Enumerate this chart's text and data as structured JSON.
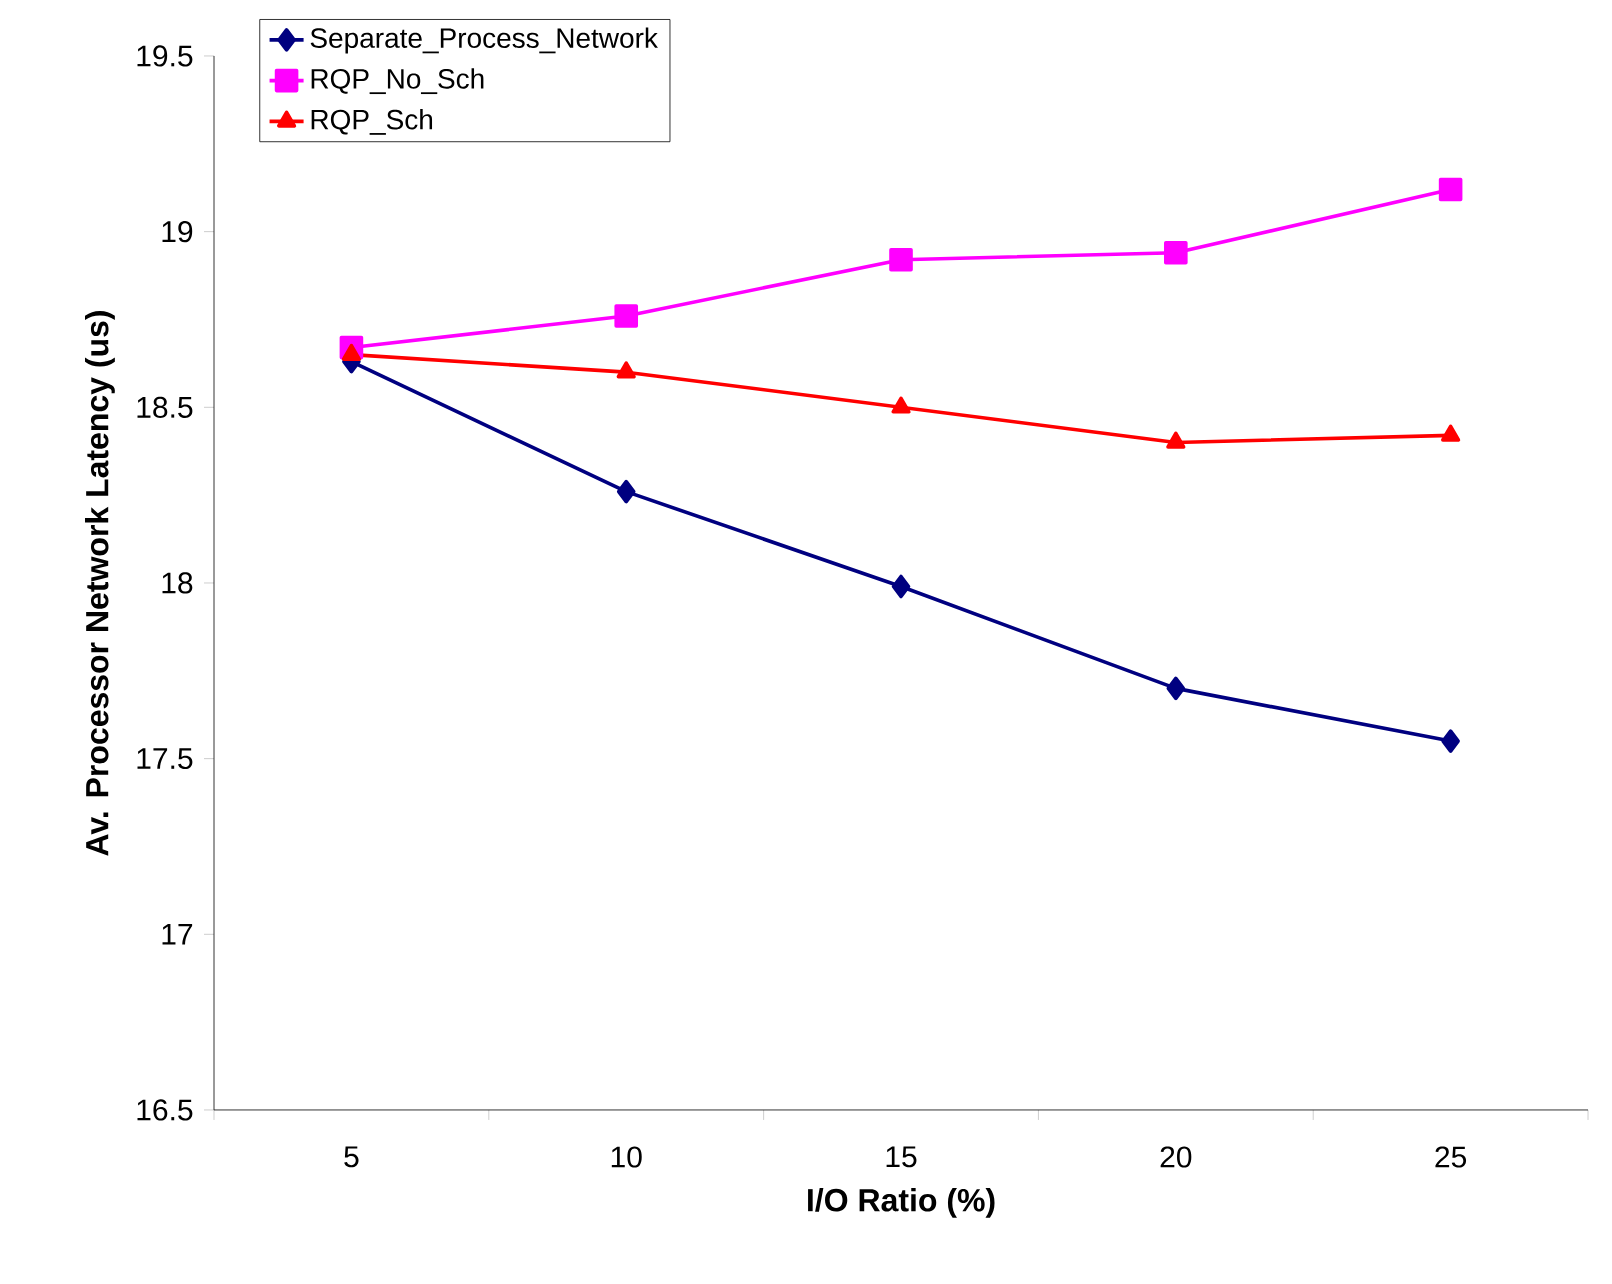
{
  "chart_data": {
    "type": "line",
    "xlabel": "I/O Ratio (%)",
    "ylabel": "Av. Processor Network Latency (us)",
    "categories": [
      "5",
      "10",
      "15",
      "20",
      "25"
    ],
    "series": [
      {
        "name": "Separate_Process_Network",
        "color": "#000080",
        "marker": "diamond",
        "values": [
          18.63,
          18.26,
          17.99,
          17.7,
          17.55
        ]
      },
      {
        "name": "RQP_No_Sch",
        "color": "#ff00ff",
        "marker": "square",
        "values": [
          18.67,
          18.76,
          18.92,
          18.94,
          19.12
        ]
      },
      {
        "name": "RQP_Sch",
        "color": "#ff0000",
        "marker": "triangle",
        "values": [
          18.65,
          18.6,
          18.5,
          18.4,
          18.42
        ]
      }
    ],
    "ylim": [
      16.5,
      19.5
    ],
    "yticks": [
      16.5,
      17,
      17.5,
      18,
      18.5,
      19,
      19.5
    ],
    "grid": false,
    "legend": "top left",
    "line_style": "solid"
  }
}
